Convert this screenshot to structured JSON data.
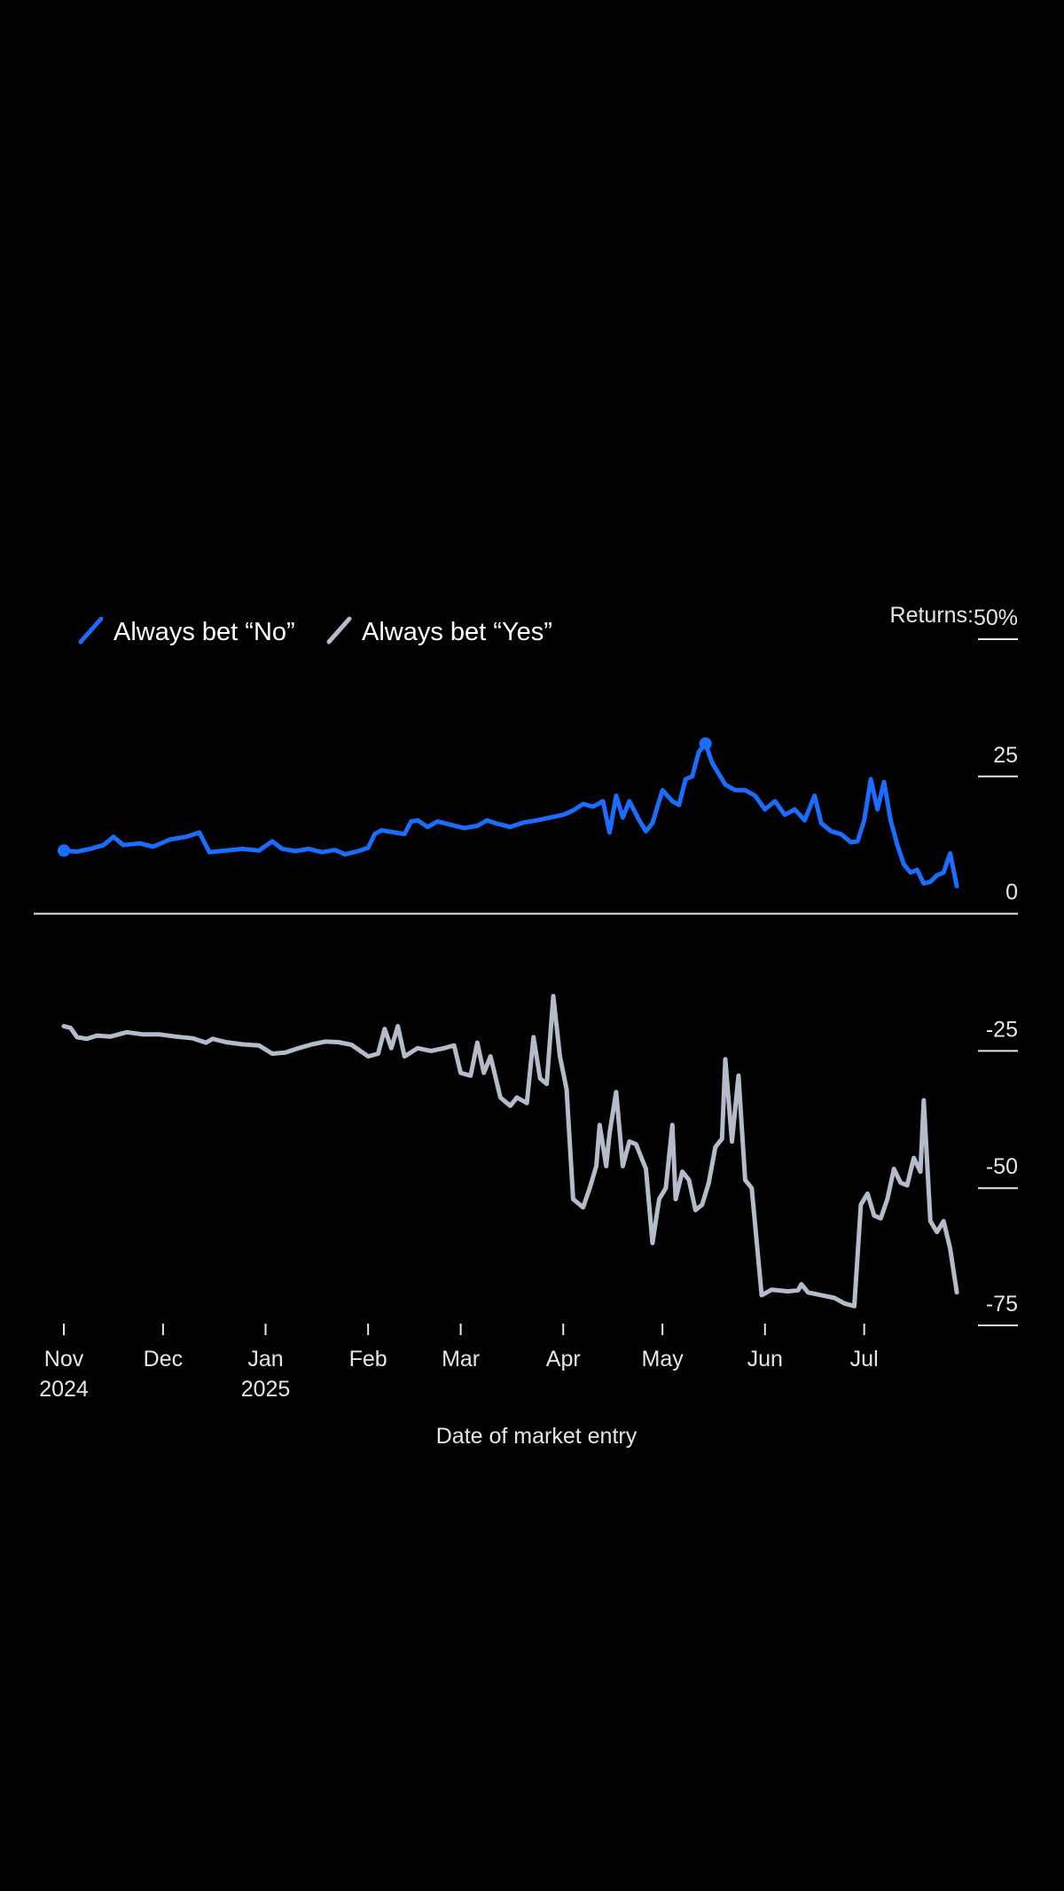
{
  "chart_data": {
    "type": "line",
    "title": "",
    "xlabel": "Date of market entry",
    "ylabel": "",
    "y_prefix_label": "Returns:",
    "y_unit": "%",
    "ylim": [
      -75,
      50
    ],
    "y_ticks": [
      50,
      25,
      0,
      -25,
      -50,
      -75
    ],
    "y_tick_labels": [
      "50%",
      "25",
      "0",
      "-25",
      "-50",
      "-75"
    ],
    "grid": false,
    "legend_position": "top-left",
    "x_ticks": [
      {
        "date": "2024-11-01",
        "label": "Nov",
        "sublabel": "2024"
      },
      {
        "date": "2024-12-01",
        "label": "Dec",
        "sublabel": ""
      },
      {
        "date": "2025-01-01",
        "label": "Jan",
        "sublabel": "2025"
      },
      {
        "date": "2025-02-01",
        "label": "Feb",
        "sublabel": ""
      },
      {
        "date": "2025-03-01",
        "label": "Mar",
        "sublabel": ""
      },
      {
        "date": "2025-04-01",
        "label": "Apr",
        "sublabel": ""
      },
      {
        "date": "2025-05-01",
        "label": "May",
        "sublabel": ""
      },
      {
        "date": "2025-06-01",
        "label": "Jun",
        "sublabel": ""
      },
      {
        "date": "2025-07-01",
        "label": "Jul",
        "sublabel": ""
      }
    ],
    "series": [
      {
        "name": "Always bet “No”",
        "color": "#1a6dff",
        "markers": [
          {
            "date": "2024-11-01",
            "value": 11.5
          },
          {
            "date": "2025-05-14",
            "value": 31
          }
        ],
        "points": [
          [
            "2024-11-01",
            11.5
          ],
          [
            "2024-11-05",
            11.3
          ],
          [
            "2024-11-09",
            11.8
          ],
          [
            "2024-11-13",
            12.5
          ],
          [
            "2024-11-16",
            14.0
          ],
          [
            "2024-11-19",
            12.5
          ],
          [
            "2024-11-24",
            12.8
          ],
          [
            "2024-11-28",
            12.2
          ],
          [
            "2024-12-03",
            13.5
          ],
          [
            "2024-12-08",
            14.0
          ],
          [
            "2024-12-12",
            14.8
          ],
          [
            "2024-12-15",
            11.2
          ],
          [
            "2024-12-20",
            11.5
          ],
          [
            "2024-12-25",
            11.8
          ],
          [
            "2024-12-30",
            11.5
          ],
          [
            "2025-01-03",
            13.2
          ],
          [
            "2025-01-06",
            11.8
          ],
          [
            "2025-01-10",
            11.4
          ],
          [
            "2025-01-14",
            11.8
          ],
          [
            "2025-01-18",
            11.2
          ],
          [
            "2025-01-22",
            11.6
          ],
          [
            "2025-01-25",
            10.8
          ],
          [
            "2025-01-29",
            11.4
          ],
          [
            "2025-02-01",
            12.0
          ],
          [
            "2025-02-03",
            14.5
          ],
          [
            "2025-02-05",
            15.2
          ],
          [
            "2025-02-09",
            14.8
          ],
          [
            "2025-02-12",
            14.5
          ],
          [
            "2025-02-14",
            16.8
          ],
          [
            "2025-02-16",
            17.0
          ],
          [
            "2025-02-19",
            15.8
          ],
          [
            "2025-02-22",
            16.8
          ],
          [
            "2025-02-26",
            16.2
          ],
          [
            "2025-03-02",
            15.6
          ],
          [
            "2025-03-06",
            16.0
          ],
          [
            "2025-03-09",
            17.0
          ],
          [
            "2025-03-12",
            16.4
          ],
          [
            "2025-03-16",
            15.8
          ],
          [
            "2025-03-20",
            16.6
          ],
          [
            "2025-03-24",
            17.0
          ],
          [
            "2025-03-28",
            17.5
          ],
          [
            "2025-04-01",
            18.0
          ],
          [
            "2025-04-04",
            18.8
          ],
          [
            "2025-04-07",
            20.0
          ],
          [
            "2025-04-10",
            19.5
          ],
          [
            "2025-04-13",
            20.5
          ],
          [
            "2025-04-15",
            14.8
          ],
          [
            "2025-04-17",
            21.5
          ],
          [
            "2025-04-19",
            17.5
          ],
          [
            "2025-04-21",
            20.5
          ],
          [
            "2025-04-24",
            17.0
          ],
          [
            "2025-04-26",
            15.0
          ],
          [
            "2025-04-28",
            16.5
          ],
          [
            "2025-05-01",
            22.5
          ],
          [
            "2025-05-04",
            20.5
          ],
          [
            "2025-05-06",
            19.8
          ],
          [
            "2025-05-08",
            24.5
          ],
          [
            "2025-05-10",
            25.0
          ],
          [
            "2025-05-12",
            29.5
          ],
          [
            "2025-05-14",
            31.0
          ],
          [
            "2025-05-16",
            27.5
          ],
          [
            "2025-05-18",
            25.5
          ],
          [
            "2025-05-20",
            23.5
          ],
          [
            "2025-05-23",
            22.5
          ],
          [
            "2025-05-26",
            22.5
          ],
          [
            "2025-05-29",
            21.5
          ],
          [
            "2025-06-01",
            19.0
          ],
          [
            "2025-06-04",
            20.5
          ],
          [
            "2025-06-07",
            18.0
          ],
          [
            "2025-06-10",
            19.0
          ],
          [
            "2025-06-13",
            17.0
          ],
          [
            "2025-06-16",
            21.5
          ],
          [
            "2025-06-18",
            16.5
          ],
          [
            "2025-06-21",
            15.0
          ],
          [
            "2025-06-24",
            14.5
          ],
          [
            "2025-06-27",
            13.0
          ],
          [
            "2025-06-29",
            13.2
          ],
          [
            "2025-07-01",
            17.0
          ],
          [
            "2025-07-03",
            24.5
          ],
          [
            "2025-07-05",
            19.0
          ],
          [
            "2025-07-07",
            24.0
          ],
          [
            "2025-07-09",
            17.0
          ],
          [
            "2025-07-11",
            12.5
          ],
          [
            "2025-07-13",
            9.0
          ],
          [
            "2025-07-15",
            7.5
          ],
          [
            "2025-07-17",
            8.0
          ],
          [
            "2025-07-19",
            5.5
          ],
          [
            "2025-07-21",
            5.8
          ],
          [
            "2025-07-23",
            7.0
          ],
          [
            "2025-07-25",
            7.5
          ],
          [
            "2025-07-27",
            11.0
          ],
          [
            "2025-07-29",
            5.0
          ]
        ]
      },
      {
        "name": "Always bet “Yes”",
        "color": "#b4bccb",
        "markers": [],
        "points": [
          [
            "2024-11-01",
            -20.5
          ],
          [
            "2024-11-03",
            -20.8
          ],
          [
            "2024-11-05",
            -22.5
          ],
          [
            "2024-11-08",
            -22.8
          ],
          [
            "2024-11-11",
            -22.2
          ],
          [
            "2024-11-15",
            -22.4
          ],
          [
            "2024-11-20",
            -21.6
          ],
          [
            "2024-11-25",
            -22.0
          ],
          [
            "2024-11-30",
            -22.0
          ],
          [
            "2024-12-05",
            -22.4
          ],
          [
            "2024-12-10",
            -22.7
          ],
          [
            "2024-12-14",
            -23.5
          ],
          [
            "2024-12-16",
            -22.8
          ],
          [
            "2024-12-20",
            -23.4
          ],
          [
            "2024-12-25",
            -23.8
          ],
          [
            "2024-12-30",
            -24.0
          ],
          [
            "2025-01-03",
            -25.5
          ],
          [
            "2025-01-07",
            -25.3
          ],
          [
            "2025-01-11",
            -24.5
          ],
          [
            "2025-01-15",
            -23.8
          ],
          [
            "2025-01-19",
            -23.3
          ],
          [
            "2025-01-23",
            -23.4
          ],
          [
            "2025-01-27",
            -23.9
          ],
          [
            "2025-02-01",
            -26.0
          ],
          [
            "2025-02-04",
            -25.5
          ],
          [
            "2025-02-06",
            -21.0
          ],
          [
            "2025-02-08",
            -24.5
          ],
          [
            "2025-02-10",
            -20.5
          ],
          [
            "2025-02-12",
            -26.0
          ],
          [
            "2025-02-16",
            -24.5
          ],
          [
            "2025-02-20",
            -25.0
          ],
          [
            "2025-02-24",
            -24.5
          ],
          [
            "2025-02-27",
            -24.0
          ],
          [
            "2025-03-01",
            -29.0
          ],
          [
            "2025-03-04",
            -29.5
          ],
          [
            "2025-03-06",
            -23.5
          ],
          [
            "2025-03-08",
            -29.0
          ],
          [
            "2025-03-10",
            -26.0
          ],
          [
            "2025-03-13",
            -33.5
          ],
          [
            "2025-03-16",
            -35.0
          ],
          [
            "2025-03-18",
            -33.5
          ],
          [
            "2025-03-21",
            -34.5
          ],
          [
            "2025-03-23",
            -22.5
          ],
          [
            "2025-03-25",
            -30.0
          ],
          [
            "2025-03-27",
            -31.0
          ],
          [
            "2025-03-29",
            -15.0
          ],
          [
            "2025-03-31",
            -26.0
          ],
          [
            "2025-04-02",
            -32.0
          ],
          [
            "2025-04-04",
            -52.0
          ],
          [
            "2025-04-07",
            -53.5
          ],
          [
            "2025-04-09",
            -50.0
          ],
          [
            "2025-04-11",
            -46.0
          ],
          [
            "2025-04-12",
            -38.5
          ],
          [
            "2025-04-14",
            -46.0
          ],
          [
            "2025-04-15",
            -40.0
          ],
          [
            "2025-04-17",
            -32.5
          ],
          [
            "2025-04-19",
            -46.0
          ],
          [
            "2025-04-21",
            -41.5
          ],
          [
            "2025-04-23",
            -42.0
          ],
          [
            "2025-04-26",
            -46.5
          ],
          [
            "2025-04-28",
            -60.0
          ],
          [
            "2025-04-30",
            -52.0
          ],
          [
            "2025-05-02",
            -50.0
          ],
          [
            "2025-05-04",
            -38.5
          ],
          [
            "2025-05-05",
            -52.0
          ],
          [
            "2025-05-07",
            -47.0
          ],
          [
            "2025-05-09",
            -48.5
          ],
          [
            "2025-05-11",
            -54.0
          ],
          [
            "2025-05-13",
            -53.0
          ],
          [
            "2025-05-15",
            -49.0
          ],
          [
            "2025-05-17",
            -42.5
          ],
          [
            "2025-05-19",
            -41.0
          ],
          [
            "2025-05-20",
            -26.5
          ],
          [
            "2025-05-22",
            -41.5
          ],
          [
            "2025-05-24",
            -29.5
          ],
          [
            "2025-05-26",
            -48.5
          ],
          [
            "2025-05-28",
            -50.0
          ],
          [
            "2025-05-31",
            -69.5
          ],
          [
            "2025-06-03",
            -68.5
          ],
          [
            "2025-06-08",
            -68.8
          ],
          [
            "2025-06-11",
            -68.6
          ],
          [
            "2025-06-12",
            -67.5
          ],
          [
            "2025-06-14",
            -69.0
          ],
          [
            "2025-06-18",
            -69.5
          ],
          [
            "2025-06-22",
            -70.0
          ],
          [
            "2025-06-25",
            -71.0
          ],
          [
            "2025-06-28",
            -71.5
          ],
          [
            "2025-06-30",
            -53.0
          ],
          [
            "2025-07-02",
            -51.0
          ],
          [
            "2025-07-04",
            -55.0
          ],
          [
            "2025-07-06",
            -55.5
          ],
          [
            "2025-07-08",
            -52.0
          ],
          [
            "2025-07-10",
            -46.5
          ],
          [
            "2025-07-12",
            -49.0
          ],
          [
            "2025-07-14",
            -49.5
          ],
          [
            "2025-07-16",
            -44.5
          ],
          [
            "2025-07-18",
            -47.0
          ],
          [
            "2025-07-19",
            -34.0
          ],
          [
            "2025-07-21",
            -56.0
          ],
          [
            "2025-07-23",
            -58.0
          ],
          [
            "2025-07-25",
            -56.0
          ],
          [
            "2025-07-27",
            -61.0
          ],
          [
            "2025-07-29",
            -69.0
          ]
        ]
      }
    ]
  }
}
